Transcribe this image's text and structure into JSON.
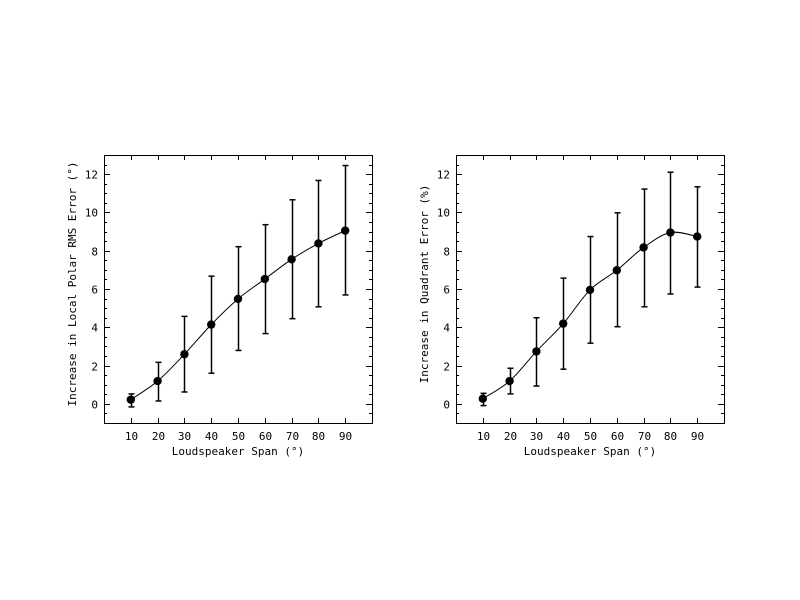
{
  "figure": {
    "background": "#ffffff",
    "line_color": "#000000"
  },
  "chart_data": [
    {
      "type": "line",
      "panel": "left",
      "title": "",
      "xlabel": "Loudspeaker Span (°)",
      "ylabel": "Increase in Local Polar RMS Error (°)",
      "xlim": [
        0,
        100
      ],
      "ylim": [
        -1,
        13
      ],
      "x_ticks": [
        10,
        20,
        30,
        40,
        50,
        60,
        70,
        80,
        90
      ],
      "y_ticks": [
        0,
        2,
        4,
        6,
        8,
        10,
        12
      ],
      "y_minor_step": 0.5,
      "grid": false,
      "legend": null,
      "x": [
        10,
        20,
        30,
        40,
        50,
        60,
        70,
        80,
        90
      ],
      "series": [
        {
          "name": "Local Polar RMS Error increase",
          "values": [
            0.22,
            1.19,
            2.59,
            4.14,
            5.48,
            6.52,
            7.55,
            8.38,
            9.05
          ],
          "error_upper": [
            0.52,
            2.17,
            4.57,
            6.67,
            8.21,
            9.36,
            10.66,
            11.67,
            12.45
          ],
          "error_lower": [
            -0.16,
            0.15,
            0.62,
            1.6,
            2.79,
            3.67,
            4.45,
            5.07,
            5.69
          ],
          "marker": "filled-circle",
          "color": "#000000"
        }
      ]
    },
    {
      "type": "line",
      "panel": "right",
      "title": "",
      "xlabel": "Loudspeaker Span (°)",
      "ylabel": "Increase in Quadrant Error (%)",
      "xlim": [
        0,
        100
      ],
      "ylim": [
        -1,
        13
      ],
      "x_ticks": [
        10,
        20,
        30,
        40,
        50,
        60,
        70,
        80,
        90
      ],
      "y_ticks": [
        0,
        2,
        4,
        6,
        8,
        10,
        12
      ],
      "y_minor_step": 0.5,
      "grid": false,
      "legend": null,
      "x": [
        10,
        20,
        30,
        40,
        50,
        60,
        70,
        80,
        90
      ],
      "series": [
        {
          "name": "Quadrant Error increase",
          "values": [
            0.27,
            1.19,
            2.74,
            4.19,
            5.95,
            6.98,
            8.17,
            8.95,
            8.74
          ],
          "error_upper": [
            0.55,
            1.86,
            4.5,
            6.57,
            8.74,
            9.98,
            11.22,
            12.1,
            11.34
          ],
          "error_lower": [
            -0.09,
            0.52,
            0.93,
            1.81,
            3.17,
            4.03,
            5.07,
            5.74,
            6.1
          ],
          "marker": "filled-circle",
          "color": "#000000"
        }
      ]
    }
  ]
}
